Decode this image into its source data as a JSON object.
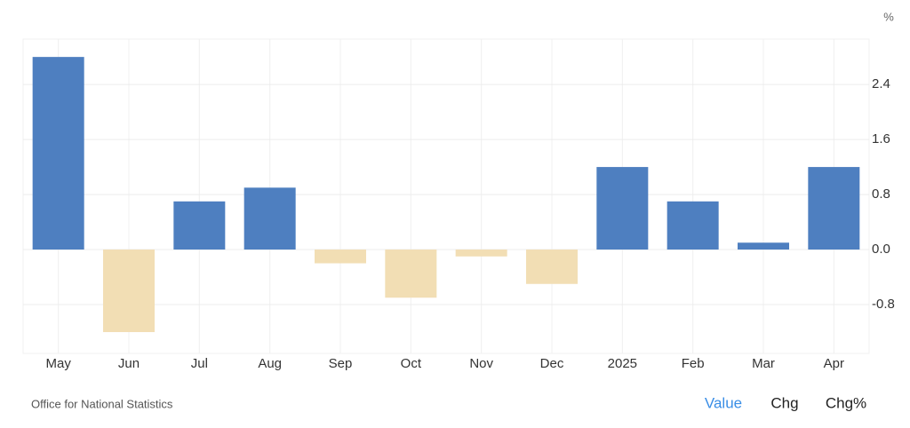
{
  "chart_data": {
    "type": "bar",
    "categories": [
      "May",
      "Jun",
      "Jul",
      "Aug",
      "Sep",
      "Oct",
      "Nov",
      "Dec",
      "2025",
      "Feb",
      "Mar",
      "Apr"
    ],
    "values": [
      2.8,
      -1.2,
      0.7,
      0.9,
      -0.2,
      -0.7,
      -0.1,
      -0.5,
      1.2,
      0.7,
      0.1,
      1.2
    ],
    "positive_color": "#4e7fc0",
    "negative_color": "#f2deb4",
    "unit": "%",
    "ylim": [
      -1.51,
      3.06
    ],
    "yticks": [
      -0.8,
      {
        "value": 0,
        "label": "0.0"
      },
      0.8,
      1.6,
      2.4
    ],
    "grid": true,
    "source": "Office for National Statistics",
    "tabs": [
      "Value",
      "Chg",
      "Chg%"
    ]
  }
}
